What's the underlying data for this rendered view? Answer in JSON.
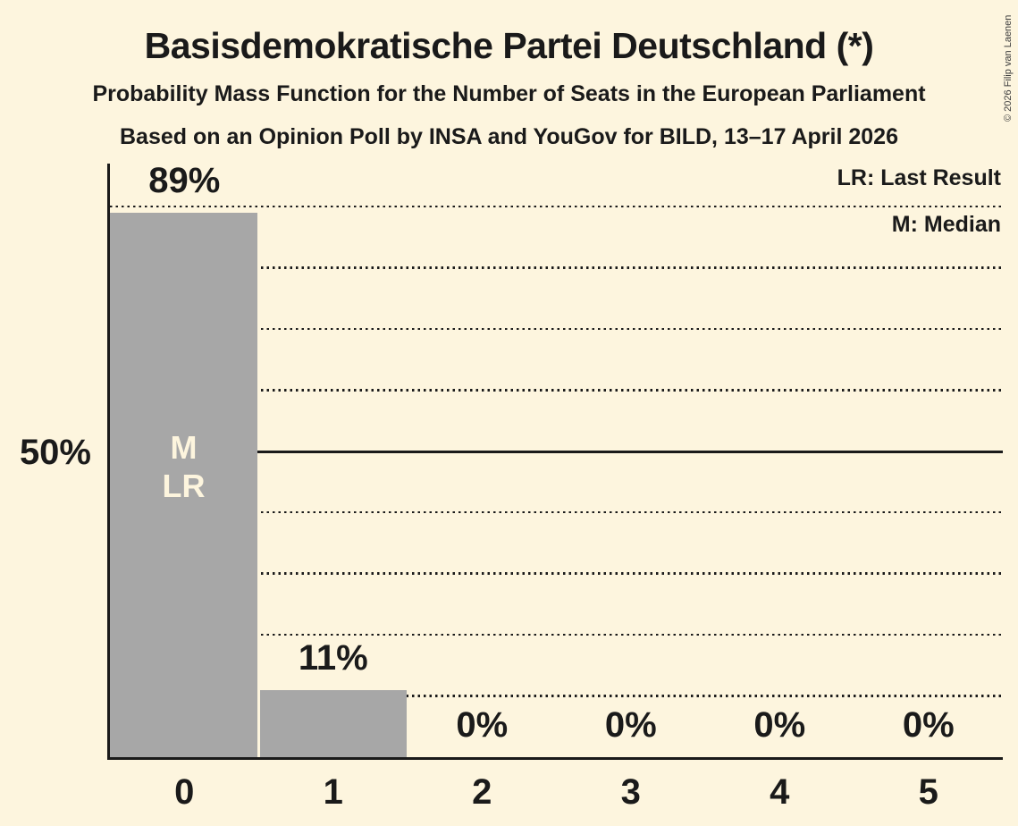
{
  "header": {
    "title": "Basisdemokratische Partei Deutschland (*)",
    "subtitle": "Probability Mass Function for the Number of Seats in the European Parliament",
    "poll_info": "Based on an Opinion Poll by INSA and YouGov for BILD, 13–17 April 2026"
  },
  "copyright": "© 2026 Filip van Laenen",
  "legend": {
    "last_result": "LR: Last Result",
    "median": "M: Median"
  },
  "chart_data": {
    "type": "bar",
    "title": "Probability Mass Function for the Number of Seats in the European Parliament",
    "categories": [
      "0",
      "1",
      "2",
      "3",
      "4",
      "5"
    ],
    "values": [
      89,
      11,
      0,
      0,
      0,
      0
    ],
    "value_labels": [
      "89%",
      "11%",
      "0%",
      "0%",
      "0%",
      "0%"
    ],
    "xlabel": "",
    "ylabel": "",
    "y_axis": {
      "ylim": [
        0,
        100
      ],
      "gridline_step": 10,
      "solid_line_value": 50,
      "tick_label": "50%"
    },
    "grid": "dotted-horizontal",
    "legend_position": "top-right",
    "annotations": [
      {
        "bar_category": "0",
        "lines": [
          "M",
          "LR"
        ]
      }
    ],
    "colors": {
      "background": "#fdf5de",
      "bar": "#a7a7a7",
      "ink": "#1a1a1a",
      "bar_annotation_text": "#fdf5de"
    }
  }
}
